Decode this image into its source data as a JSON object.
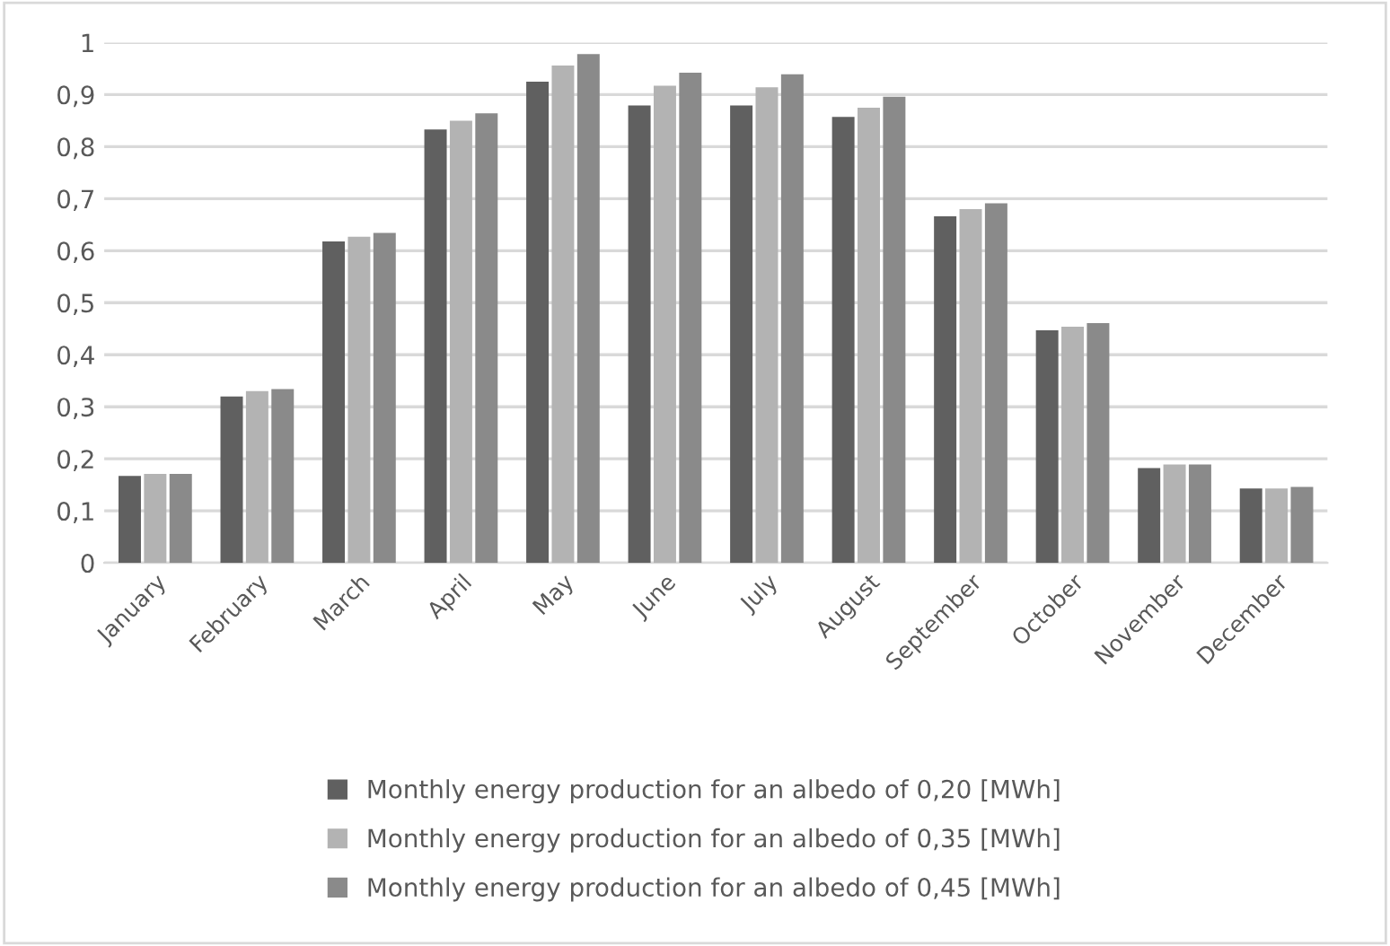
{
  "chart_data": {
    "type": "bar",
    "categories": [
      "January",
      "February",
      "March",
      "April",
      "May",
      "June",
      "July",
      "August",
      "September",
      "October",
      "November",
      "December"
    ],
    "series": [
      {
        "name": "Monthly energy production for an albedo of 0,20 [MWh]",
        "color": "#606060",
        "values": [
          0.167,
          0.32,
          0.618,
          0.833,
          0.925,
          0.879,
          0.879,
          0.857,
          0.666,
          0.447,
          0.182,
          0.143
        ]
      },
      {
        "name": "Monthly energy production for an albedo of 0,35 [MWh]",
        "color": "#b3b3b3",
        "values": [
          0.171,
          0.33,
          0.627,
          0.85,
          0.956,
          0.917,
          0.914,
          0.875,
          0.68,
          0.454,
          0.189,
          0.143
        ]
      },
      {
        "name": "Monthly energy production for an albedo of 0,45 [MWh]",
        "color": "#8a8a8a",
        "values": [
          0.171,
          0.334,
          0.634,
          0.864,
          0.978,
          0.942,
          0.939,
          0.896,
          0.691,
          0.461,
          0.189,
          0.146
        ]
      }
    ],
    "ylim": [
      0,
      1
    ],
    "yticks": [
      0,
      {
        "value": 0.1,
        "label": "0,1"
      },
      {
        "value": 0.2,
        "label": "0,2"
      },
      {
        "value": 0.3,
        "label": "0,3"
      },
      {
        "value": 0.4,
        "label": "0,4"
      },
      {
        "value": 0.5,
        "label": "0,5"
      },
      {
        "value": 0.6,
        "label": "0,6"
      },
      {
        "value": 0.7,
        "label": "0,7"
      },
      {
        "value": 0.8,
        "label": "0,8"
      },
      {
        "value": 0.9,
        "label": "0,9"
      },
      1
    ],
    "grid": "y",
    "legend": "bottom"
  }
}
